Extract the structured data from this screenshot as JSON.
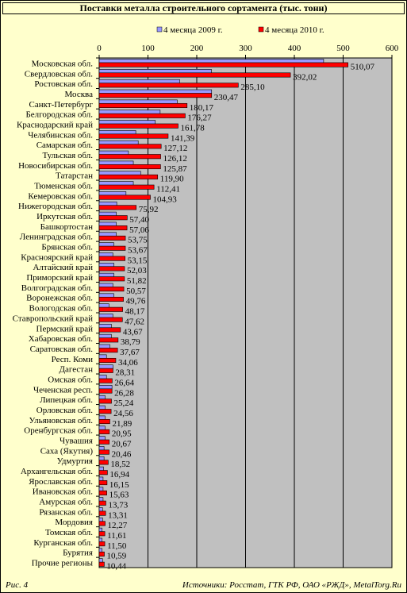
{
  "colors": {
    "background": "#ffffcc",
    "plot_area": "#c0c0c0",
    "series_2009": "#9999ff",
    "series_2010": "#ff0000"
  },
  "footer": {
    "figure_label": "Рис. 4",
    "source": "Источники: Росстат, ГТК РФ, ОАО «РЖД», MetalTorg.Ru"
  },
  "chart_data": {
    "type": "bar",
    "orientation": "horizontal",
    "title": "Поставки металла строительного сортамента (тыс. тонн)",
    "xlim": [
      0,
      600
    ],
    "xticks": [
      "0",
      "100",
      "200",
      "300",
      "400",
      "500",
      "600"
    ],
    "grid": true,
    "legend_position": "top",
    "categories": [
      "Московская обл.",
      "Свердловская обл.",
      "Ростовская обл.",
      "Москва",
      "Санкт-Петербург",
      "Белгородская обл.",
      "Краснодарский край",
      "Челябинская обл.",
      "Самарская обл.",
      "Тульская обл.",
      "Новосибирская обл.",
      "Татарстан",
      "Тюменская обл.",
      "Кемеровская обл.",
      "Нижегородская обл.",
      "Иркутская обл.",
      "Башкортостан",
      "Ленинградская обл.",
      "Брянская обл.",
      "Красноярский край",
      "Алтайский край",
      "Приморский край",
      "Волгоградская обл.",
      "Воронежская обл.",
      "Вологодская обл.",
      "Ставропольский край",
      "Пермский край",
      "Хабаровская обл.",
      "Саратовская обл.",
      "Респ. Коми",
      "Дагестан",
      "Омская обл.",
      "Чеченская респ.",
      "Липецкая обл.",
      "Орловская обл.",
      "Ульяновская обл.",
      "Оренбургская обл.",
      "Чувашия",
      "Саха (Якутия)",
      "Удмуртия",
      "Архангельская обл.",
      "Ярославская обл.",
      "Ивановская обл.",
      "Амурская обл.",
      "Рязанская обл.",
      "Мордовия",
      "Томская обл.",
      "Курганская обл.",
      "Бурятия",
      "Прочие регионы"
    ],
    "series": [
      {
        "name": "4 месяца 2009 г.",
        "color": "#9999ff",
        "values": [
          460,
          230,
          165,
          230.47,
          160,
          125,
          115,
          75,
          80,
          60,
          70,
          85,
          70,
          55,
          36,
          35,
          35,
          35,
          30,
          28,
          30,
          30,
          28,
          30,
          20,
          28,
          25,
          25,
          22,
          15,
          28.31,
          15,
          26.28,
          12,
          12,
          12,
          12,
          12,
          10,
          10,
          9,
          8,
          8,
          8,
          7,
          7,
          6,
          6,
          6,
          7
        ]
      },
      {
        "name": "4 месяца 2010 г.",
        "color": "#ff0000",
        "values": [
          510.07,
          392.02,
          285.1,
          230.47,
          180.17,
          176.27,
          161.78,
          141.39,
          127.12,
          126.12,
          125.87,
          119.9,
          112.41,
          104.93,
          75.92,
          57.4,
          57.06,
          53.75,
          53.67,
          53.15,
          52.03,
          51.82,
          50.57,
          49.76,
          48.17,
          47.62,
          43.67,
          38.79,
          37.67,
          34.06,
          28.31,
          26.64,
          26.28,
          25.24,
          24.56,
          21.89,
          20.95,
          20.67,
          20.46,
          18.52,
          16.94,
          16.15,
          15.63,
          13.73,
          13.31,
          12.27,
          11.61,
          11.5,
          10.59,
          10.44
        ]
      }
    ],
    "value_labels": [
      "510,07",
      "392,02",
      "285,10",
      "230,47",
      "180,17",
      "176,27",
      "161,78",
      "141,39",
      "127,12",
      "126,12",
      "125,87",
      "119,90",
      "112,41",
      "104,93",
      "75,92",
      "57,40",
      "57,06",
      "53,75",
      "53,67",
      "53,15",
      "52,03",
      "51,82",
      "50,57",
      "49,76",
      "48,17",
      "47,62",
      "43,67",
      "38,79",
      "37,67",
      "34,06",
      "28,31",
      "26,64",
      "26,28",
      "25,24",
      "24,56",
      "21,89",
      "20,95",
      "20,67",
      "20,46",
      "18,52",
      "16,94",
      "16,15",
      "15,63",
      "13,73",
      "13,31",
      "12,27",
      "11,61",
      "11,50",
      "10,59",
      "10,44"
    ]
  }
}
